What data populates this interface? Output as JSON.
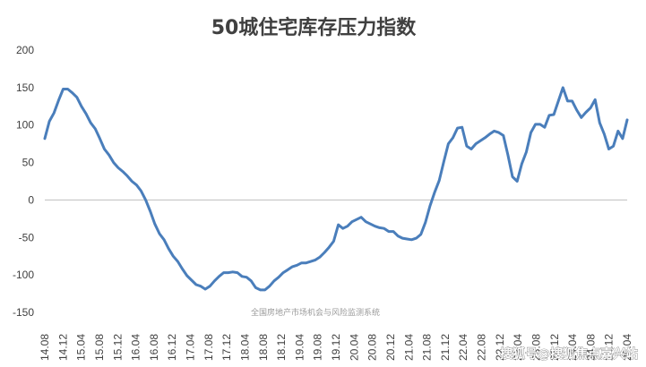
{
  "chart_data": {
    "type": "line",
    "title": "50城住宅库存压力指数",
    "xlabel": "",
    "ylabel": "",
    "ylim": [
      -150,
      200
    ],
    "yticks": [
      200,
      150,
      100,
      50,
      0,
      -50,
      -100,
      -150
    ],
    "grid": false,
    "legend": "none",
    "line_color": "#4a7ebb",
    "tick_labels": [
      "14.08",
      "14.12",
      "15.04",
      "15.08",
      "15.12",
      "16.04",
      "16.08",
      "16.12",
      "17.04",
      "17.08",
      "17.12",
      "18.04",
      "18.08",
      "18.12",
      "19.04",
      "19.08",
      "19.12",
      "20.04",
      "20.08",
      "20.12",
      "21.04",
      "21.08",
      "21.12",
      "22.04",
      "22.08",
      "22.12",
      "23.04",
      "23.08",
      "23.12",
      "24.04",
      "24.08",
      "24.12",
      "25.04"
    ],
    "series": [
      {
        "values": [
          82,
          105,
          116,
          133,
          148,
          148,
          143,
          137,
          125,
          115,
          103,
          95,
          82,
          68,
          60,
          50,
          43,
          38,
          32,
          25,
          20,
          12,
          0,
          -15,
          -32,
          -45,
          -53,
          -65,
          -75,
          -82,
          -92,
          -101,
          -107,
          -113,
          -115,
          -119,
          -115,
          -108,
          -102,
          -97,
          -97,
          -96,
          -97,
          -102,
          -103,
          -108,
          -117,
          -120,
          -120,
          -115,
          -108,
          -103,
          -97,
          -93,
          -89,
          -87,
          -84,
          -84,
          -82,
          -80,
          -76,
          -70,
          -63,
          -55,
          -33,
          -38,
          -35,
          -29,
          -26,
          -23,
          -29,
          -32,
          -35,
          -37,
          -38,
          -42,
          -42,
          -48,
          -51,
          -52,
          -53,
          -51,
          -46,
          -30,
          -8,
          10,
          26,
          51,
          75,
          83,
          96,
          97,
          72,
          68,
          75,
          79,
          83,
          88,
          92,
          90,
          86,
          60,
          31,
          25,
          48,
          64,
          90,
          101,
          101,
          97,
          113,
          114,
          132,
          150,
          132,
          132,
          120,
          110,
          117,
          123,
          134,
          103,
          88,
          68,
          72,
          92,
          82,
          107
        ]
      }
    ]
  },
  "watermark": "全国房地产市场机会与风险监测系统",
  "credit": "搜狐号@搜狐焦点嘉兴站"
}
